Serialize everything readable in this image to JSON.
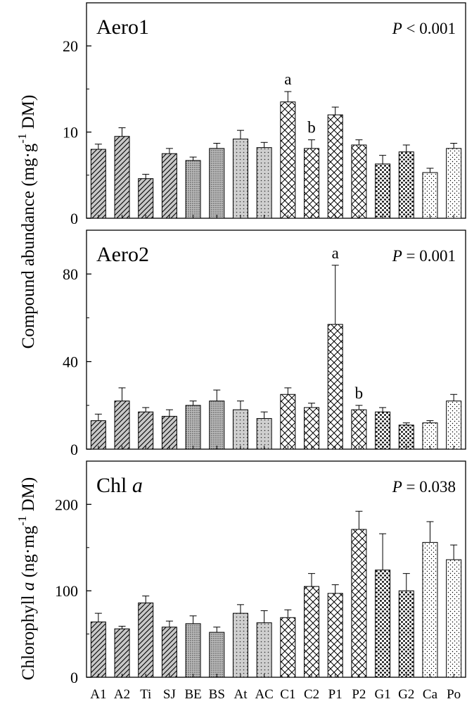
{
  "chart_data": [
    {
      "type": "bar",
      "title": "Aero1",
      "title_italic_part": "",
      "p_label": "P",
      "p_value_text": " < 0.001",
      "ylim": [
        0,
        25
      ],
      "yticks": [
        0,
        10,
        20
      ],
      "categories": [
        "A1",
        "A2",
        "Ti",
        "SJ",
        "BE",
        "BS",
        "At",
        "AC",
        "C1",
        "C2",
        "P1",
        "P2",
        "G1",
        "G2",
        "Ca",
        "Po"
      ],
      "values": [
        8.0,
        9.5,
        4.6,
        7.5,
        6.7,
        8.1,
        9.2,
        8.2,
        13.5,
        8.1,
        12.0,
        8.5,
        6.3,
        7.7,
        5.3,
        8.1
      ],
      "errors": [
        0.6,
        1.0,
        0.5,
        0.6,
        0.4,
        0.6,
        1.0,
        0.6,
        1.2,
        1.0,
        0.9,
        0.6,
        1.0,
        0.8,
        0.5,
        0.6
      ],
      "annotations": [
        {
          "index": 8,
          "text": "a"
        },
        {
          "index": 9,
          "text": "b"
        }
      ]
    },
    {
      "type": "bar",
      "title": "Aero2",
      "title_italic_part": "",
      "p_label": "P",
      "p_value_text": " = 0.001",
      "ylim": [
        0,
        100
      ],
      "yticks": [
        0,
        40,
        80
      ],
      "categories": [
        "A1",
        "A2",
        "Ti",
        "SJ",
        "BE",
        "BS",
        "At",
        "AC",
        "C1",
        "C2",
        "P1",
        "P2",
        "G1",
        "G2",
        "Ca",
        "Po"
      ],
      "values": [
        13,
        22,
        17,
        15,
        20,
        22,
        18,
        14,
        25,
        19,
        57,
        18,
        17,
        11,
        12,
        22
      ],
      "errors": [
        3,
        6,
        2,
        3,
        2,
        5,
        4,
        3,
        3,
        2,
        27,
        2,
        2,
        1,
        1,
        3
      ],
      "annotations": [
        {
          "index": 10,
          "text": "a"
        },
        {
          "index": 11,
          "text": "b"
        }
      ]
    },
    {
      "type": "bar",
      "title": "Chl ",
      "title_italic_part": "a",
      "p_label": "P",
      "p_value_text": " = 0.038",
      "ylim": [
        0,
        250
      ],
      "yticks": [
        0,
        100,
        200
      ],
      "categories": [
        "A1",
        "A2",
        "Ti",
        "SJ",
        "BE",
        "BS",
        "At",
        "AC",
        "C1",
        "C2",
        "P1",
        "P2",
        "G1",
        "G2",
        "Ca",
        "Po"
      ],
      "values": [
        64,
        56,
        86,
        58,
        62,
        52,
        74,
        63,
        69,
        105,
        97,
        171,
        124,
        100,
        156,
        136
      ],
      "errors": [
        10,
        3,
        8,
        7,
        9,
        6,
        10,
        14,
        9,
        15,
        10,
        21,
        42,
        20,
        24,
        17
      ],
      "annotations": []
    }
  ],
  "y_axis_labels": {
    "top_main": "Compound abundance (mg·g",
    "top_sup": "-1",
    "top_end": " DM)",
    "bottom_main": "Chlorophyll ",
    "bottom_italic": "a",
    "bottom_mid": " (ng·mg",
    "bottom_sup": "-1",
    "bottom_end": " DM)"
  },
  "bar_patterns": [
    "diag",
    "diag",
    "diag",
    "diag",
    "dots-fine",
    "dots-fine",
    "dots-sparse",
    "dots-sparse",
    "cross",
    "cross",
    "cross",
    "cross",
    "dots-bold",
    "dots-bold",
    "dots-light",
    "dots-light"
  ],
  "bar_fills": [
    "#c8c8c8",
    "#c8c8c8",
    "#c8c8c8",
    "#c8c8c8",
    "#bdbdbd",
    "#bdbdbd",
    "#c8c8c8",
    "#c8c8c8",
    "#ffffff",
    "#ffffff",
    "#ffffff",
    "#ffffff",
    "#ffffff",
    "#ffffff",
    "#ffffff",
    "#ffffff"
  ]
}
